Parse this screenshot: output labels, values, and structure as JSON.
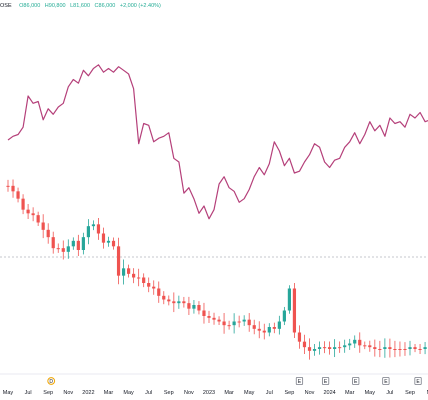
{
  "header": {
    "symbol": "OSE",
    "open": "O86,000",
    "high": "H90,800",
    "low": "L81,600",
    "close": "C86,000",
    "change": "+2,000 (+2.40%)"
  },
  "colors": {
    "up": "#26a69a",
    "down": "#ef5350",
    "compare_line": "#b5407a",
    "axis": "#131722",
    "grid_dashed": "#b2b5be"
  },
  "chart_data": {
    "type": "candlestick_with_overlay_line",
    "x_tick_labels": [
      "May",
      "Jul",
      "Sep",
      "Nov",
      "2022",
      "Mar",
      "May",
      "Jul",
      "Sep",
      "Nov",
      "2023",
      "Mar",
      "May",
      "Jul",
      "Sep",
      "Nov",
      "2024",
      "Mar",
      "May",
      "Jul",
      "Sep",
      "No"
    ],
    "compare_line": {
      "months": [
        0,
        0.5,
        1,
        1.5,
        2,
        2.5,
        3,
        3.5,
        4,
        4.5,
        5,
        5.5,
        6,
        6.5,
        7,
        7.5,
        8,
        8.5,
        9,
        9.5,
        10,
        10.5,
        11,
        11.5,
        12,
        12.5,
        13,
        13.5,
        14,
        14.5,
        15,
        15.5,
        16,
        16.5,
        17,
        17.5,
        18,
        18.5,
        19,
        19.5,
        20,
        20.5,
        21,
        21.5,
        22,
        22.5,
        23,
        23.5,
        24,
        24.5,
        25,
        25.5,
        26,
        26.5,
        27,
        27.5,
        28,
        28.5,
        29,
        29.5,
        30,
        30.5,
        31,
        31.5,
        32,
        32.5,
        33,
        33.5,
        34,
        34.5,
        35,
        35.5,
        36,
        36.5,
        37,
        37.5,
        38,
        38.5,
        39,
        39.5,
        40,
        40.5,
        41,
        41.5,
        42,
        42.5
      ],
      "values": [
        120,
        116,
        114,
        106,
        72,
        80,
        78,
        98,
        86,
        92,
        84,
        80,
        62,
        54,
        58,
        44,
        50,
        42,
        38,
        46,
        42,
        46,
        40,
        44,
        48,
        64,
        124,
        102,
        104,
        122,
        118,
        116,
        112,
        140,
        144,
        178,
        172,
        184,
        200,
        192,
        206,
        196,
        168,
        160,
        172,
        176,
        188,
        184,
        174,
        160,
        150,
        158,
        146,
        122,
        132,
        148,
        140,
        156,
        154,
        144,
        136,
        124,
        128,
        144,
        150,
        142,
        140,
        128,
        122,
        112,
        124,
        114,
        100,
        110,
        104,
        116,
        96,
        102,
        100,
        106,
        92,
        96,
        90,
        100,
        98,
        102
      ]
    },
    "candles": {
      "months": [
        0,
        0.5,
        1,
        1.5,
        2,
        2.5,
        3,
        3.5,
        4,
        4.5,
        5,
        5.5,
        6,
        6.5,
        7,
        7.5,
        8,
        8.5,
        9,
        9.5,
        10,
        10.5,
        11,
        11.5,
        12,
        12.5,
        13,
        13.5,
        14,
        14.5,
        15,
        15.5,
        16,
        16.5,
        17,
        17.5,
        18,
        18.5,
        19,
        19.5,
        20,
        20.5,
        21,
        21.5,
        22,
        22.5,
        23,
        23.5,
        24,
        24.5,
        25,
        25.5,
        26,
        26.5,
        27,
        27.5,
        28,
        28.5,
        29,
        29.5,
        30,
        30.5,
        31,
        31.5,
        32,
        32.5,
        33,
        33.5,
        34,
        34.5,
        35,
        35.5,
        36,
        36.5,
        37,
        37.5,
        38,
        38.5,
        39,
        39.5,
        40,
        40.5,
        41,
        41.5,
        42,
        42.5
      ],
      "close": [
        170,
        176,
        184,
        196,
        200,
        202,
        210,
        218,
        226,
        238,
        238,
        242,
        236,
        230,
        240,
        226,
        214,
        212,
        222,
        232,
        230,
        236,
        268,
        260,
        266,
        270,
        270,
        276,
        280,
        282,
        290,
        294,
        296,
        298,
        296,
        298,
        304,
        300,
        306,
        312,
        314,
        316,
        318,
        322,
        322,
        318,
        318,
        316,
        322,
        326,
        328,
        330,
        324,
        326,
        318,
        306,
        282,
        330,
        340,
        346,
        350,
        348,
        346,
        346,
        348,
        346,
        346,
        344,
        342,
        338,
        344,
        344,
        346,
        348,
        348,
        346,
        348,
        348,
        348,
        348,
        346,
        348,
        348,
        346,
        348,
        348
      ]
    },
    "events": {
      "labels": [
        "D",
        "E",
        "E",
        "E",
        "E",
        "E"
      ],
      "months": [
        4.3,
        29,
        31.6,
        34.6,
        37.6,
        40.8
      ]
    }
  }
}
